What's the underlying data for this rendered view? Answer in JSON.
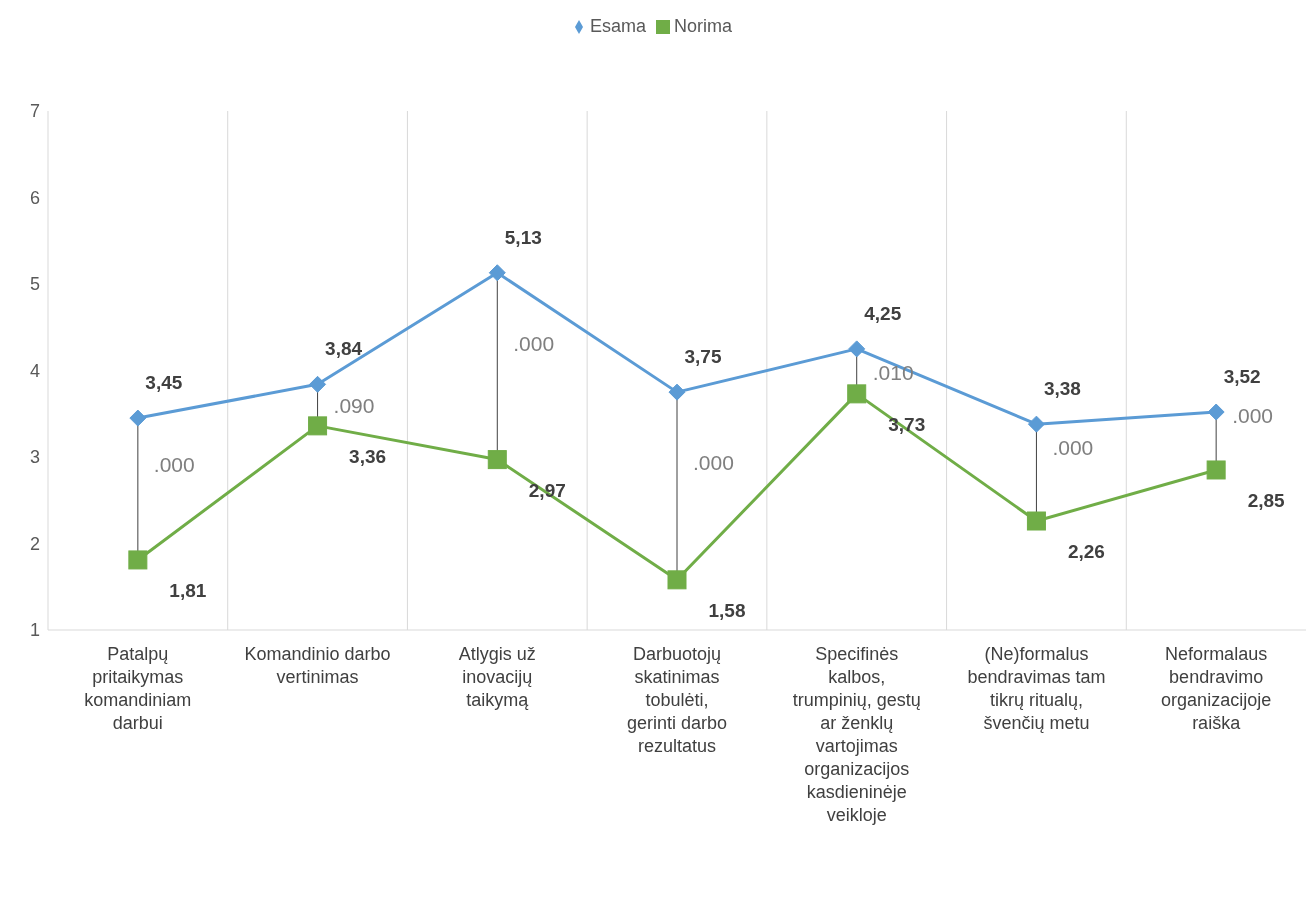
{
  "chart_data": {
    "type": "line",
    "categories": [
      "Patalpų pritaikymas komandiniam darbui",
      "Komandinio darbo vertinimas",
      "Atlygis už inovacijų taikymą",
      "Darbuotojų skatinimas tobulėti, gerinti darbo rezultatus",
      "Specifinės kalbos, trumpinių, gestų ar ženklų vartojimas organizacijos kasdieninėje veikloje",
      "(Ne)formalus bendravimas tam tikrų ritualų, švenčių metu",
      "Neformalaus bendravimo organizacijoje raiška"
    ],
    "series": [
      {
        "name": "Esama",
        "color": "#5b9bd5",
        "marker": "diamond",
        "values": [
          3.45,
          3.84,
          5.13,
          3.75,
          4.25,
          3.38,
          3.52
        ],
        "value_labels": [
          "3,45",
          "3,84",
          "5,13",
          "3,75",
          "4,25",
          "3,38",
          "3,52"
        ]
      },
      {
        "name": "Norima",
        "color": "#70ad47",
        "marker": "square",
        "values": [
          1.81,
          3.36,
          2.97,
          1.58,
          3.73,
          2.26,
          2.85
        ],
        "value_labels": [
          "1,81",
          "3,36",
          "2,97",
          "1,58",
          "3,73",
          "2,26",
          "2,85"
        ]
      }
    ],
    "ylim": [
      1,
      7
    ],
    "yticks": [
      1,
      2,
      3,
      4,
      5,
      6,
      7
    ],
    "grid": "x",
    "legend": "top",
    "line_style": "solid",
    "annotations": [
      ".000",
      ".090",
      ".000",
      ".000",
      ".010",
      {
        "text": ".000",
        "x": "(Ne)formalus bendravimas tam tikrų ritualų, švenčių metu",
        "y": 3.38
      },
      {
        "text": ".000",
        "x": "Neformalaus bendravimo organizacijoje raiška",
        "y": 3.52
      }
    ]
  }
}
